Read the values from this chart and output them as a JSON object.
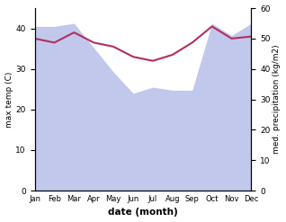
{
  "months": [
    "Jan",
    "Feb",
    "Mar",
    "Apr",
    "May",
    "Jun",
    "Jul",
    "Aug",
    "Sep",
    "Oct",
    "Nov",
    "Dec"
  ],
  "max_temp": [
    37.5,
    36.5,
    39.0,
    36.5,
    35.5,
    33.0,
    32.0,
    33.5,
    36.5,
    40.5,
    37.5,
    38.0
  ],
  "precipitation_mm": [
    54,
    54,
    55,
    47,
    39,
    32,
    34,
    33,
    33,
    55,
    51,
    55
  ],
  "temp_color": "#b03060",
  "precip_fill_color": "#b8bfe8",
  "temp_ylim": [
    0,
    45
  ],
  "precip_ylim": [
    0,
    60
  ],
  "temp_yticks": [
    0,
    10,
    20,
    30,
    40
  ],
  "precip_yticks": [
    0,
    10,
    20,
    30,
    40,
    50,
    60
  ],
  "xlabel": "date (month)",
  "ylabel_left": "max temp (C)",
  "ylabel_right": "med. precipitation (kg/m2)"
}
